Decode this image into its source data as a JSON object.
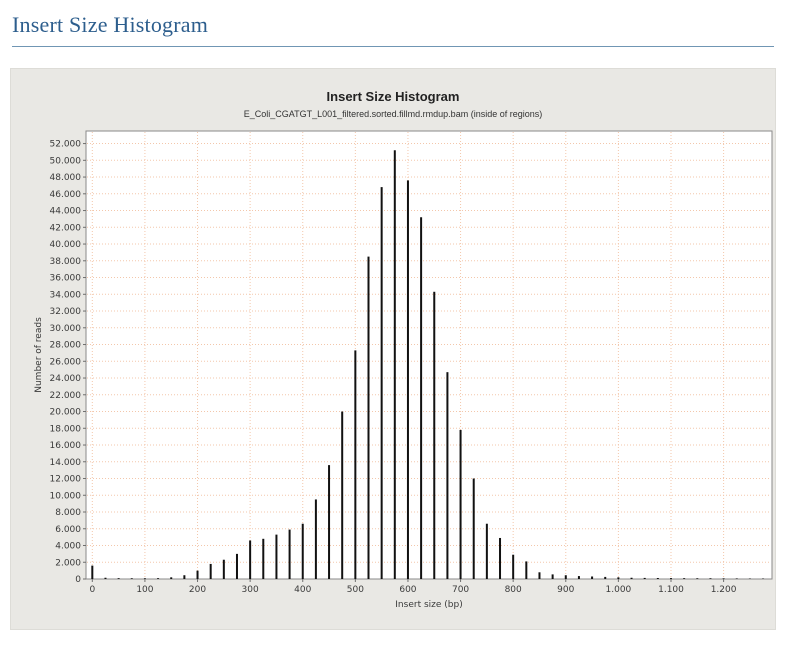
{
  "page": {
    "title": "Insert Size Histogram"
  },
  "colors": {
    "header_blue": "#2d5e8d",
    "rule_blue": "#7096b4",
    "panel_bg": "#e9e8e4",
    "plot_bg": "#ffffff",
    "plot_border": "#8a8a8a",
    "grid": "#f3c7ab",
    "bar": "#111111",
    "tick_text": "#3a3a3a",
    "axis_line": "#6e6e6e"
  },
  "chart_data": {
    "type": "bar",
    "title": "Insert Size Histogram",
    "subtitle": "E_Coli_CGATGT_L001_filtered.sorted.fillmd.rmdup.bam (inside of regions)",
    "xlabel": "Insert size (bp)",
    "ylabel": "Number of reads",
    "grid": true,
    "legend": false,
    "xlim": [
      -12,
      1292
    ],
    "ylim": [
      0,
      53500
    ],
    "x_ticks": [
      0,
      100,
      200,
      300,
      400,
      500,
      600,
      700,
      800,
      900,
      1000,
      1100,
      1200
    ],
    "x_tick_labels": [
      "0",
      "100",
      "200",
      "300",
      "400",
      "500",
      "600",
      "700",
      "800",
      "900",
      "1.000",
      "1.100",
      "1.200"
    ],
    "y_ticks": [
      0,
      2000,
      4000,
      6000,
      8000,
      10000,
      12000,
      14000,
      16000,
      18000,
      20000,
      22000,
      24000,
      26000,
      28000,
      30000,
      32000,
      34000,
      36000,
      38000,
      40000,
      42000,
      44000,
      46000,
      48000,
      50000,
      52000
    ],
    "y_tick_labels": [
      "0",
      "2.000",
      "4.000",
      "6.000",
      "8.000",
      "10.000",
      "12.000",
      "14.000",
      "16.000",
      "18.000",
      "20.000",
      "22.000",
      "24.000",
      "26.000",
      "28.000",
      "30.000",
      "32.000",
      "34.000",
      "36.000",
      "38.000",
      "40.000",
      "42.000",
      "44.000",
      "46.000",
      "48.000",
      "50.000",
      "52.000"
    ],
    "x": [
      0,
      25,
      50,
      75,
      100,
      125,
      150,
      175,
      200,
      225,
      250,
      275,
      300,
      325,
      350,
      375,
      400,
      425,
      450,
      475,
      500,
      525,
      550,
      575,
      600,
      625,
      650,
      675,
      700,
      725,
      750,
      775,
      800,
      825,
      850,
      875,
      900,
      925,
      950,
      975,
      1000,
      1025,
      1050,
      1075,
      1100,
      1125,
      1150,
      1175,
      1200,
      1225,
      1250,
      1275
    ],
    "values": [
      1600,
      150,
      100,
      90,
      90,
      100,
      200,
      450,
      1000,
      1800,
      2300,
      3000,
      4600,
      4800,
      5300,
      5900,
      6600,
      9500,
      13600,
      20000,
      27300,
      38500,
      46800,
      51200,
      47600,
      43200,
      34300,
      24700,
      17800,
      12000,
      6600,
      4900,
      2900,
      2100,
      800,
      550,
      450,
      350,
      300,
      250,
      200,
      150,
      130,
      120,
      110,
      100,
      90,
      90,
      80,
      70,
      60,
      60
    ]
  }
}
